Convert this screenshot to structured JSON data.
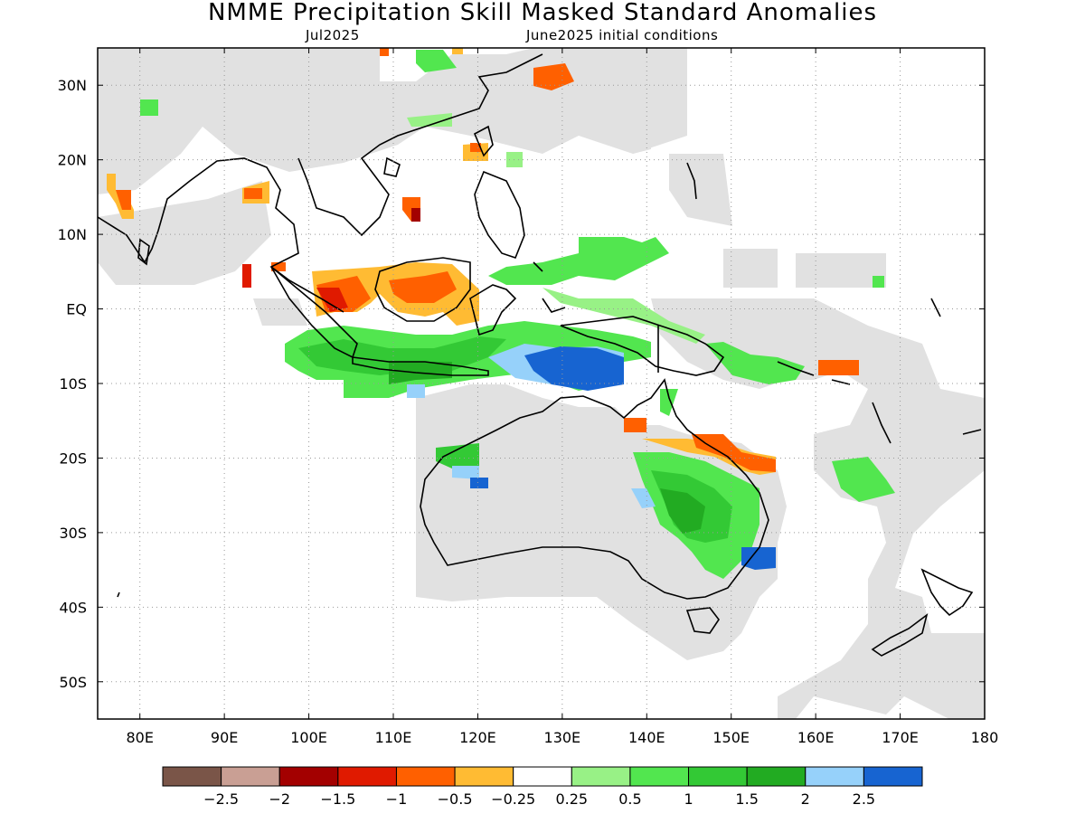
{
  "title": "NMME Precipitation Skill Masked Standard Anomalies",
  "subtitle_left": "Jul2025",
  "subtitle_right": "June2025 initial conditions",
  "map": {
    "lon_range": [
      75,
      180
    ],
    "lat_range": [
      -55,
      35
    ],
    "lon_ticks": [
      {
        "value": 80,
        "label": "80E"
      },
      {
        "value": 90,
        "label": "90E"
      },
      {
        "value": 100,
        "label": "100E"
      },
      {
        "value": 110,
        "label": "110E"
      },
      {
        "value": 120,
        "label": "120E"
      },
      {
        "value": 130,
        "label": "130E"
      },
      {
        "value": 140,
        "label": "140E"
      },
      {
        "value": 150,
        "label": "150E"
      },
      {
        "value": 160,
        "label": "160E"
      },
      {
        "value": 170,
        "label": "170E"
      },
      {
        "value": 180,
        "label": "180"
      }
    ],
    "lat_ticks": [
      {
        "value": 30,
        "label": "30N"
      },
      {
        "value": 20,
        "label": "20N"
      },
      {
        "value": 10,
        "label": "10N"
      },
      {
        "value": 0,
        "label": "EQ"
      },
      {
        "value": -10,
        "label": "10S"
      },
      {
        "value": -20,
        "label": "20S"
      },
      {
        "value": -30,
        "label": "30S"
      },
      {
        "value": -40,
        "label": "40S"
      },
      {
        "value": -50,
        "label": "50S"
      }
    ],
    "mask_color": "#e1e1e1",
    "gridlines": "dotted"
  },
  "colorbar": {
    "colors": [
      "#7a5548",
      "#c99f94",
      "#a30000",
      "#e01a00",
      "#ff6000",
      "#ffbb33",
      "#ffffff",
      "#98f186",
      "#52e64f",
      "#33c935",
      "#22ab22",
      "#96d1fa",
      "#1764d1"
    ],
    "labels": [
      "-2.5",
      "-2",
      "-1.5",
      "-1",
      "-0.5",
      "-0.25",
      "0.25",
      "0.5",
      "1",
      "1.5",
      "2",
      "2.5"
    ]
  }
}
